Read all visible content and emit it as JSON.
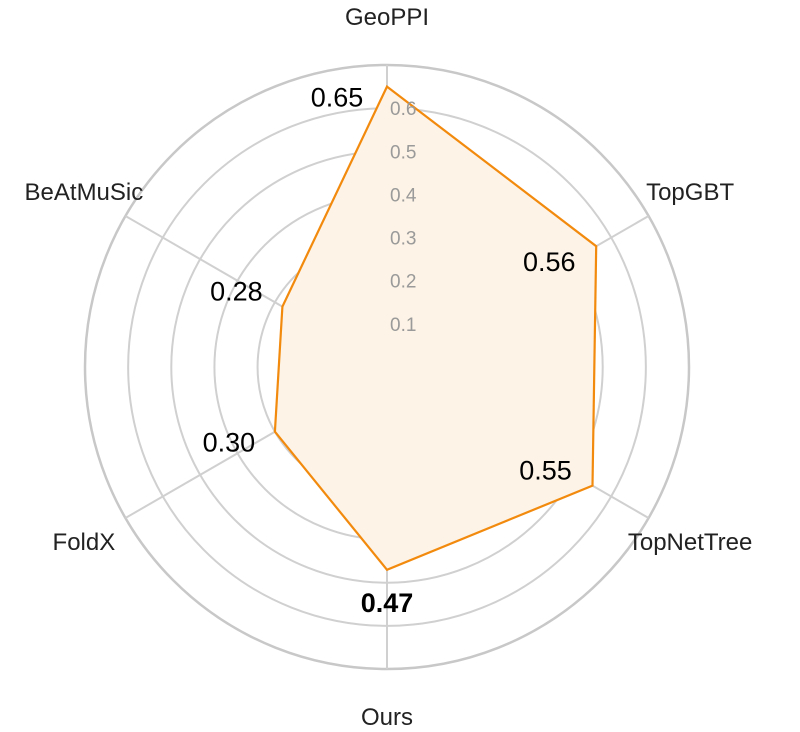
{
  "chart_data": {
    "type": "radar",
    "categories": [
      "GeoPPI",
      "TopGBT",
      "TopNetTree",
      "Ours",
      "FoldX",
      "BeAtMuSic"
    ],
    "values": [
      0.65,
      0.56,
      0.55,
      0.47,
      0.3,
      0.28
    ],
    "value_labels": [
      "0.65",
      "0.56",
      "0.55",
      "0.47",
      "0.30",
      "0.28"
    ],
    "bold_category": "Ours",
    "radial_ticks": [
      "0.1",
      "0.2",
      "0.3",
      "0.4",
      "0.5",
      "0.6"
    ],
    "radial_tick_values": [
      0.1,
      0.2,
      0.3,
      0.4,
      0.5,
      0.6
    ],
    "rmax": 0.7,
    "grid": true,
    "series_color": "#f28a0e",
    "fill_color": "#fdf3e6"
  }
}
